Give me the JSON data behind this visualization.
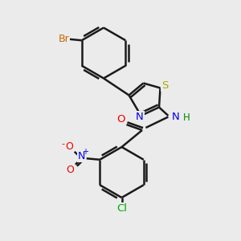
{
  "background_color": "#ebebeb",
  "bond_color": "#1a1a1a",
  "bond_width": 1.8,
  "atoms": {
    "Br": {
      "color": "#cc6600"
    },
    "S": {
      "color": "#aaaa00"
    },
    "N": {
      "color": "#0000ee"
    },
    "O": {
      "color": "#ee0000"
    },
    "Cl": {
      "color": "#00aa00"
    },
    "H": {
      "color": "#008800"
    }
  },
  "figsize": [
    3.0,
    3.0
  ],
  "dpi": 100
}
